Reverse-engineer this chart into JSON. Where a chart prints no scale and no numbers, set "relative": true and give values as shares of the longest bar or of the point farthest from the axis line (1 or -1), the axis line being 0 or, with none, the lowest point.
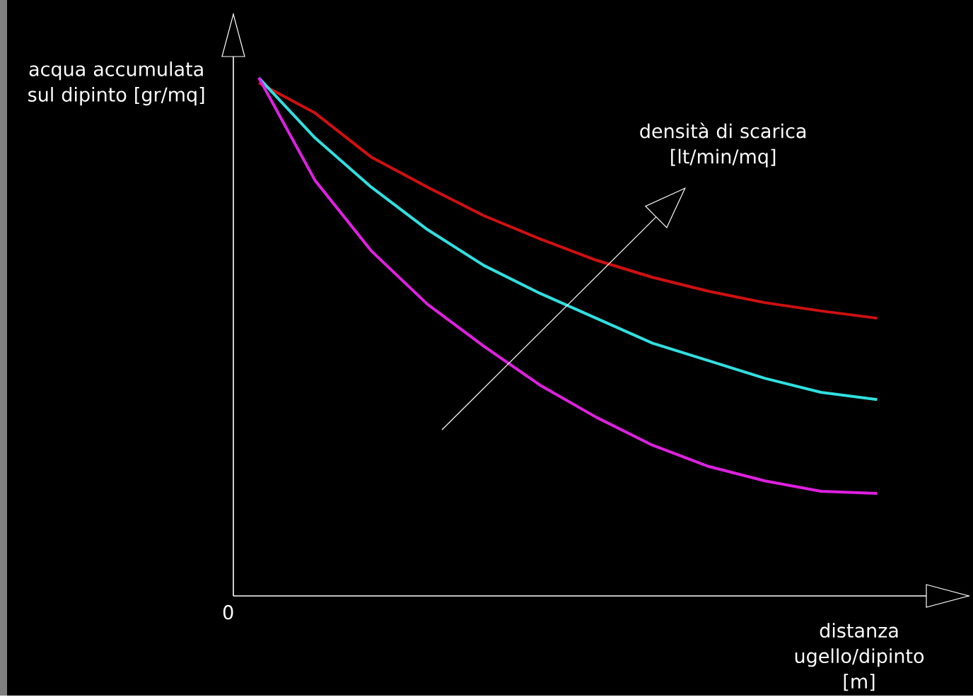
{
  "chart_data": {
    "type": "line",
    "relative": true,
    "xlabel": "distanza ugello/dipinto [m]",
    "ylabel": "acqua accumulata sul dipinto [gr/mq]",
    "annotations": [
      "densità di scarica [lt/min/mq]",
      "0"
    ],
    "categories": [
      null,
      null,
      null,
      null,
      null,
      null,
      null,
      null,
      null,
      null,
      null,
      null
    ],
    "series": [
      {
        "color": "#d01010",
        "values": [
          0.99,
          0.932,
          0.847,
          0.789,
          0.734,
          0.689,
          0.648,
          0.615,
          0.588,
          0.566,
          0.55,
          0.536
        ]
      },
      {
        "color": "#30e0e0",
        "values": [
          1.0,
          0.884,
          0.789,
          0.707,
          0.638,
          0.584,
          0.536,
          0.488,
          0.454,
          0.42,
          0.393,
          0.379
        ]
      },
      {
        "color": "#e020e0",
        "values": [
          1.0,
          0.802,
          0.666,
          0.563,
          0.482,
          0.407,
          0.345,
          0.291,
          0.25,
          0.222,
          0.202,
          0.198
        ]
      }
    ]
  }
}
